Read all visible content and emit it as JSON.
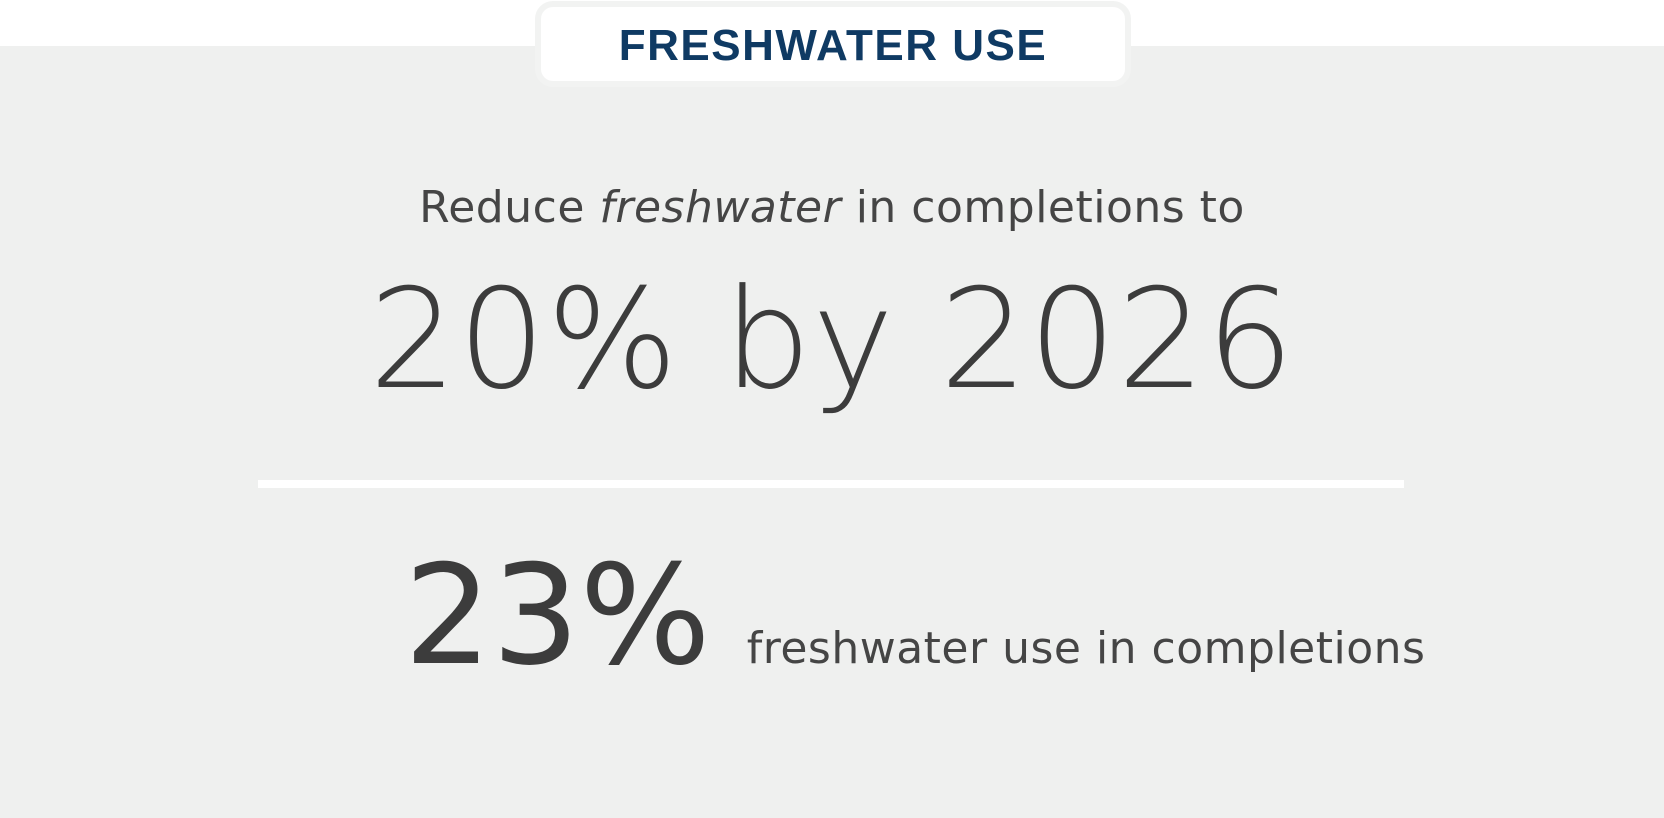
{
  "header": {
    "title": "FRESHWATER USE"
  },
  "goal": {
    "intro_prefix": "Reduce ",
    "intro_emphasis": "freshwater",
    "intro_suffix": " in completions to",
    "target": "20% by 2026"
  },
  "status": {
    "value": "23%",
    "label": "freshwater use in completions"
  },
  "colors": {
    "title": "#0f3a63",
    "panel": "#eff0ef",
    "text": "#3c3c3c",
    "divider": "#ffffff"
  }
}
